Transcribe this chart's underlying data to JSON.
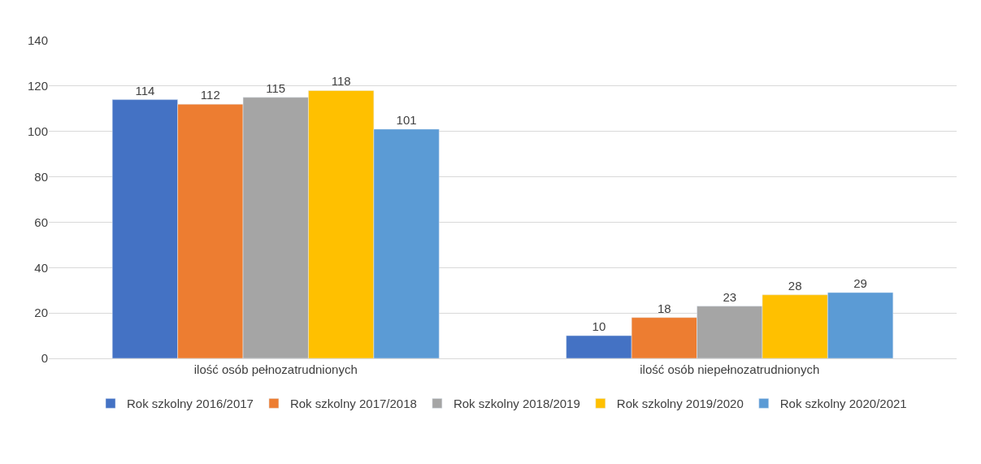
{
  "chart_data": {
    "type": "bar",
    "categories": [
      "ilość osób pełnozatrudnionych",
      "ilość osób niepełnozatrudnionych"
    ],
    "series": [
      {
        "name": "Rok szkolny 2016/2017",
        "color": "#4472c4",
        "values": [
          114,
          10
        ]
      },
      {
        "name": "Rok szkolny 2017/2018",
        "color": "#ed7d31",
        "values": [
          112,
          18
        ]
      },
      {
        "name": "Rok szkolny 2018/2019",
        "color": "#a5a5a5",
        "values": [
          115,
          23
        ]
      },
      {
        "name": "Rok szkolny 2019/2020",
        "color": "#ffc000",
        "values": [
          118,
          28
        ]
      },
      {
        "name": "Rok szkolny 2020/2021",
        "color": "#5b9bd5",
        "values": [
          101,
          29
        ]
      }
    ],
    "ylim": [
      0,
      140
    ],
    "yticks": [
      0,
      20,
      40,
      60,
      80,
      100,
      120,
      140
    ],
    "grid": "y",
    "legend": "bottom",
    "data_labels": true
  }
}
